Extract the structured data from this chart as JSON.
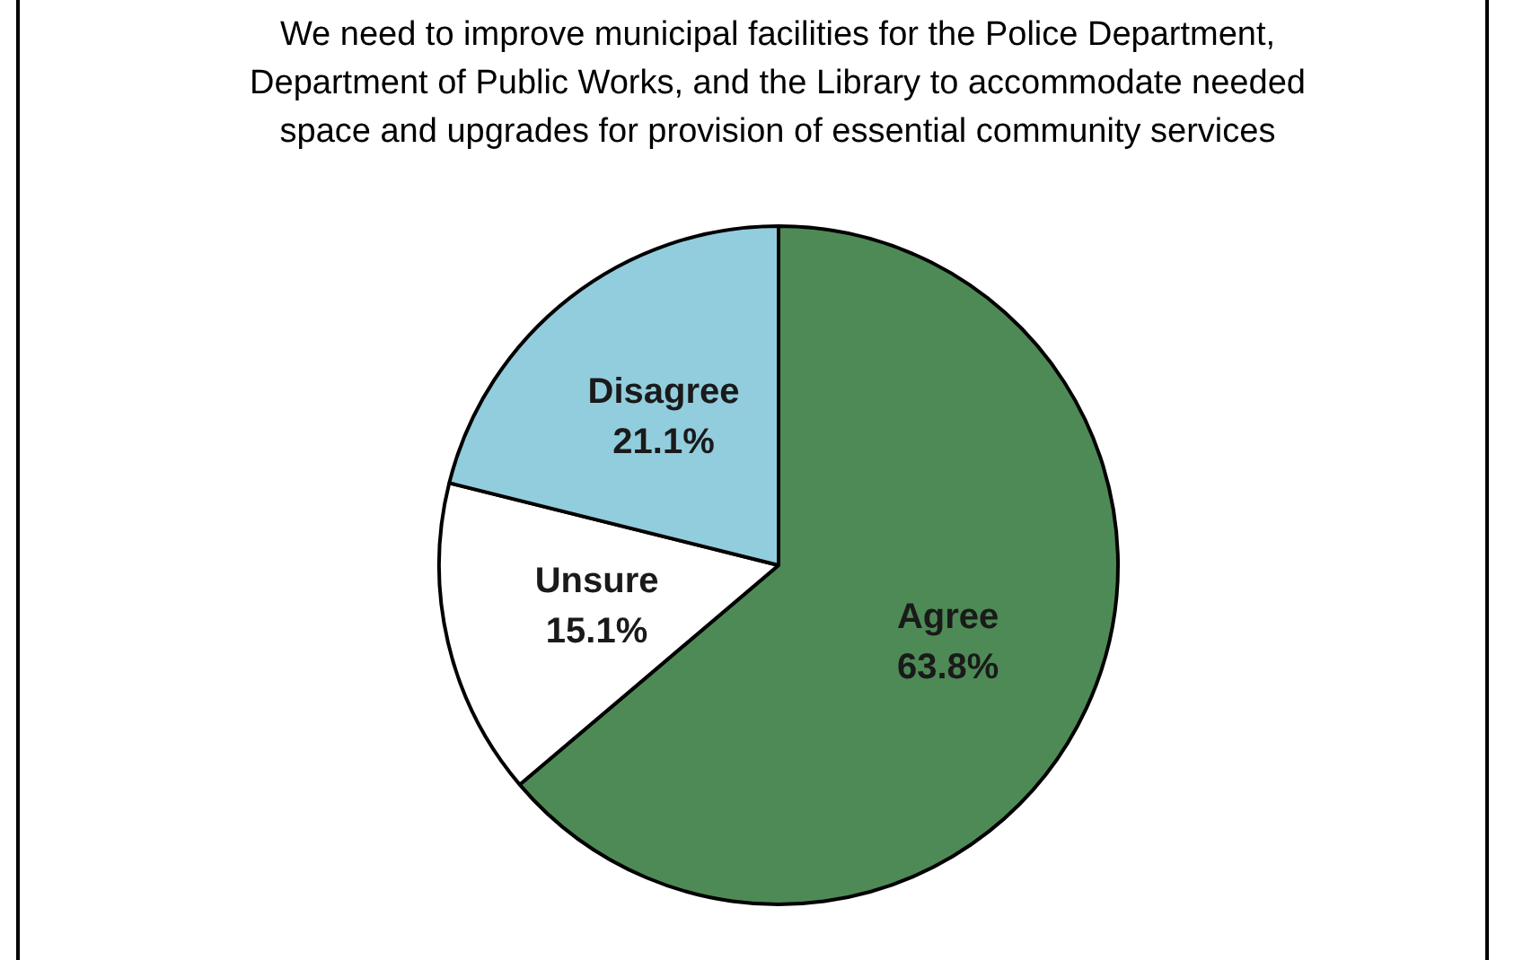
{
  "chart_data": {
    "type": "pie",
    "title": "We need to improve municipal facilities for the Police Department, Department of Public Works, and the Library to accommodate needed space and upgrades for provision of essential community services",
    "categories": [
      "Agree",
      "Unsure",
      "Disagree"
    ],
    "values": [
      63.8,
      15.1,
      21.1
    ],
    "colors": [
      "#4e8a56",
      "#ffffff",
      "#92cddd"
    ],
    "value_labels": [
      "63.8%",
      "15.1%",
      "21.1%"
    ],
    "legend": false
  }
}
